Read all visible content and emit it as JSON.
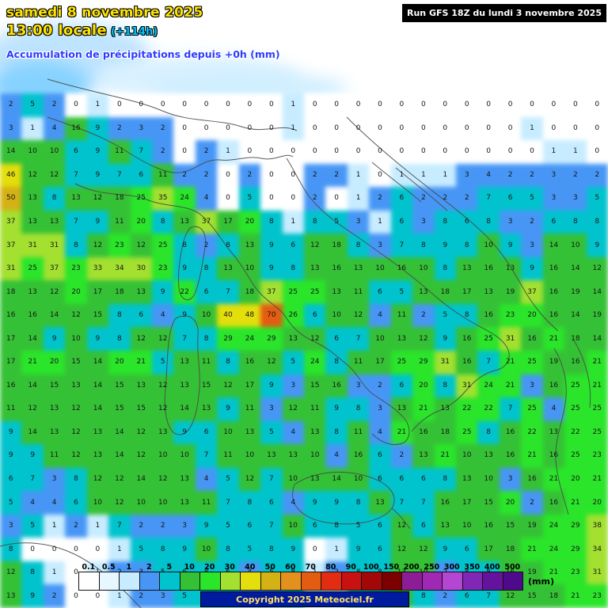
{
  "header": {
    "date": "samedi 8 novembre 2025",
    "time": "13:00 locale",
    "run_offset": "(+114h)",
    "subtitle": "Accumulation de précipitations depuis +0h (mm)",
    "run_info": "Run GFS 18Z du lundi 3 novembre 2025"
  },
  "footer": {
    "copyright": "Copyright 2025 Meteociel.fr"
  },
  "legend": {
    "unit_label": "(mm)",
    "stops": [
      "0.1",
      "0.5",
      "1",
      "2",
      "5",
      "10",
      "20",
      "30",
      "40",
      "50",
      "60",
      "70",
      "80",
      "90",
      "100",
      "150",
      "200",
      "250",
      "300",
      "350",
      "400",
      "500"
    ],
    "colors": [
      "#ffffff",
      "#e6f7ff",
      "#c8ecff",
      "#4796f5",
      "#00c3cd",
      "#35c135",
      "#2ae52a",
      "#a3e030",
      "#e3de0c",
      "#d4b115",
      "#e3901d",
      "#e35c12",
      "#e32d12",
      "#c91111",
      "#a30808",
      "#7d0000",
      "#8d1d96",
      "#a127b5",
      "#b545d3",
      "#8127b5",
      "#64139c",
      "#4f0a8c"
    ]
  },
  "map": {
    "value_grid": {
      "cols": 28,
      "rows": [
        "2,5,2,0,1,0,0,0,0,0,0,0,0,1,0,0,0,0,0,0,0,0,0,0,0,0,0,0",
        "3,1,4,16,9,2,3,2,0,0,0,0,0,1,0,0,0,0,0,0,0,0,0,0,1,0,0,0",
        "14,10,10,6,9,11,7,2,0,2,1,0,0,0,0,0,0,0,0,0,0,0,0,0,0,1,1,0",
        "46,12,12,7,9,7,6,11,2,2,0,2,0,0,2,2,1,0,1,1,1,3,4,2,2,3,2,2",
        "50,13,8,13,12,18,25,35,24,4,0,5,0,0,2,0,1,2,6,2,2,2,7,6,5,3,3,5",
        "37,13,13,7,9,11,20,8,13,37,17,20,8,1,8,5,3,1,6,3,8,6,8,3,2,6,8,8",
        "37,31,31,8,12,23,12,25,8,2,8,13,9,6,12,18,8,3,7,8,9,8,10,9,3,14,10,9",
        "31,25,37,23,33,34,30,23,9,8,13,10,9,8,13,16,13,10,16,10,8,13,16,13,9,16,14,12",
        "18,13,12,20,17,18,13,9,22,6,7,18,37,25,25,13,11,6,5,13,18,17,13,19,37,16,19,14",
        "16,16,14,12,15,8,6,4,9,10,40,48,70,26,6,10,12,4,11,2,5,8,16,23,20,16,14,19",
        "17,14,9,10,9,8,12,12,7,8,29,24,29,13,12,6,7,10,13,12,9,16,25,31,16,21,18,14",
        "17,21,20,15,14,20,21,5,13,11,8,16,12,5,24,8,11,17,25,29,31,16,7,21,25,19,16,21",
        "16,14,15,13,14,15,13,12,13,15,12,17,9,3,15,16,3,2,6,20,8,31,24,21,3,16,25,21",
        "11,12,13,12,14,15,15,12,14,13,9,11,3,12,11,9,8,3,13,21,13,22,22,7,25,4,25,25",
        "9,14,13,12,13,14,12,13,9,6,10,13,5,4,13,8,11,4,21,16,18,25,8,16,22,13,22,25",
        "9,9,11,12,13,14,12,10,10,7,11,10,13,13,10,4,16,6,2,13,21,10,13,16,21,16,25,23",
        "6,7,3,8,12,12,14,12,13,4,5,12,7,10,13,14,10,6,6,6,8,13,10,3,16,21,20,21",
        "5,4,4,6,10,12,10,10,13,11,7,8,6,4,9,9,8,13,7,7,16,17,15,20,2,16,21,20",
        "3,5,1,2,1,7,2,2,3,9,5,6,7,10,6,8,5,6,12,6,13,10,16,15,19,24,29,38",
        "8,0,0,0,0,1,5,8,9,10,8,5,8,9,0,1,9,6,12,12,9,6,17,18,21,24,29,34",
        "12,8,1,0,1,2,3,5,6,8,6,4,5,8,1,2,8,8,13,10,2,8,8,16,19,21,23,31",
        "13,9,2,0,0,1,2,3,5,6,5,3,4,6,1,1,6,7,10,8,2,6,7,12,15,18,21,23"
      ]
    }
  }
}
